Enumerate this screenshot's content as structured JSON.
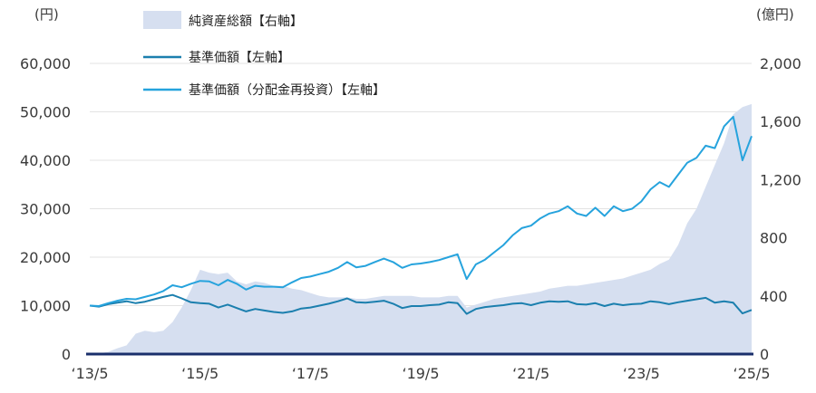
{
  "chart_data": {
    "type": "line",
    "left_unit": "(円)",
    "right_unit": "(億円)",
    "left_axis": {
      "ylim": [
        0,
        60000
      ],
      "ticks": [
        "0",
        "10,000",
        "20,000",
        "30,000",
        "40,000",
        "50,000",
        "60,000"
      ]
    },
    "right_axis": {
      "ylim": [
        0,
        2000
      ],
      "ticks": [
        "0",
        "400",
        "800",
        "1,200",
        "1,600",
        "2,000"
      ]
    },
    "x_ticks": [
      "‘13/5",
      "‘15/5",
      "‘17/5",
      "‘19/5",
      "‘21/5",
      "‘23/5",
      "‘25/5"
    ],
    "grid": true,
    "legend": [
      {
        "key": "aum",
        "label": "純資産総額【右軸】",
        "color": "#d6dff0"
      },
      {
        "key": "nav",
        "label": "基準価額【左軸】",
        "color": "#1b7fae"
      },
      {
        "key": "navr",
        "label": "基準価額（分配金再投資）【左軸】",
        "color": "#26a3dd"
      }
    ],
    "x": [
      "2013-05",
      "2013-07",
      "2013-09",
      "2013-11",
      "2014-01",
      "2014-03",
      "2014-05",
      "2014-07",
      "2014-09",
      "2014-11",
      "2015-01",
      "2015-03",
      "2015-05",
      "2015-07",
      "2015-09",
      "2015-11",
      "2016-01",
      "2016-03",
      "2016-05",
      "2016-07",
      "2016-09",
      "2016-11",
      "2017-01",
      "2017-03",
      "2017-05",
      "2017-07",
      "2017-09",
      "2017-11",
      "2018-01",
      "2018-03",
      "2018-05",
      "2018-07",
      "2018-09",
      "2018-11",
      "2019-01",
      "2019-03",
      "2019-05",
      "2019-07",
      "2019-09",
      "2019-11",
      "2020-01",
      "2020-03",
      "2020-05",
      "2020-07",
      "2020-09",
      "2020-11",
      "2021-01",
      "2021-03",
      "2021-05",
      "2021-07",
      "2021-09",
      "2021-11",
      "2022-01",
      "2022-03",
      "2022-05",
      "2022-07",
      "2022-09",
      "2022-11",
      "2023-01",
      "2023-03",
      "2023-05",
      "2023-07",
      "2023-09",
      "2023-11",
      "2024-01",
      "2024-03",
      "2024-05",
      "2024-07",
      "2024-09",
      "2024-11",
      "2025-01",
      "2025-03",
      "2025-05"
    ],
    "series": [
      {
        "key": "nav",
        "axis": "left",
        "values": [
          10000,
          9800,
          10300,
          10600,
          10900,
          10500,
          10800,
          11300,
          11800,
          12200,
          11500,
          10700,
          10500,
          10400,
          9600,
          10200,
          9500,
          8800,
          9300,
          9000,
          8700,
          8500,
          8800,
          9400,
          9600,
          10000,
          10400,
          10900,
          11500,
          10700,
          10600,
          10800,
          11000,
          10400,
          9500,
          9900,
          9900,
          10100,
          10200,
          10700,
          10500,
          8300,
          9300,
          9700,
          9900,
          10100,
          10400,
          10500,
          10100,
          10600,
          10900,
          10800,
          10900,
          10300,
          10200,
          10500,
          9900,
          10400,
          10100,
          10300,
          10400,
          10900,
          10700,
          10300,
          10700,
          11000,
          11300,
          11600,
          10600,
          10900,
          10600,
          8400,
          9100
        ]
      },
      {
        "key": "navr",
        "axis": "left",
        "values": [
          10000,
          9900,
          10500,
          11000,
          11400,
          11300,
          11800,
          12300,
          13000,
          14200,
          13800,
          14500,
          15100,
          15000,
          14200,
          15300,
          14500,
          13300,
          14100,
          13900,
          13900,
          13800,
          14800,
          15700,
          16000,
          16500,
          17000,
          17800,
          19000,
          17900,
          18200,
          19000,
          19700,
          19000,
          17800,
          18500,
          18700,
          19000,
          19400,
          20000,
          20600,
          15500,
          18500,
          19500,
          21000,
          22500,
          24500,
          26000,
          26500,
          28000,
          29000,
          29500,
          30500,
          29000,
          28500,
          30200,
          28500,
          30500,
          29500,
          30000,
          31500,
          34000,
          35500,
          34500,
          37000,
          39500,
          40500,
          43000,
          42500,
          47000,
          49000,
          40000,
          45000
        ]
      },
      {
        "key": "aum",
        "axis": "right",
        "values": [
          0,
          5,
          15,
          40,
          60,
          140,
          160,
          150,
          160,
          220,
          320,
          440,
          580,
          560,
          550,
          560,
          500,
          480,
          500,
          490,
          470,
          470,
          450,
          440,
          420,
          400,
          390,
          390,
          390,
          380,
          380,
          390,
          400,
          400,
          400,
          400,
          390,
          390,
          390,
          400,
          400,
          320,
          340,
          360,
          380,
          390,
          400,
          410,
          420,
          430,
          450,
          460,
          470,
          470,
          480,
          490,
          500,
          510,
          520,
          540,
          560,
          580,
          620,
          650,
          750,
          900,
          1000,
          1150,
          1300,
          1450,
          1650,
          1700,
          1720
        ]
      }
    ]
  }
}
